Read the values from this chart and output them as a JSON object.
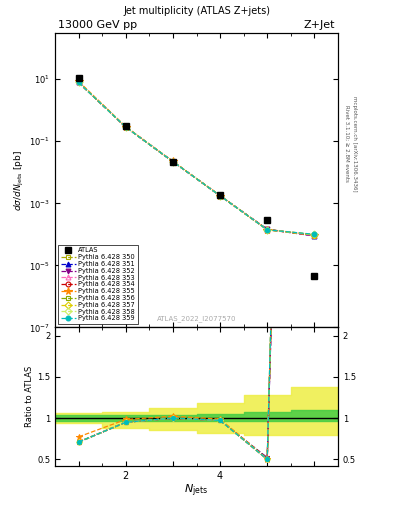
{
  "title_top_left": "13000 GeV pp",
  "title_top_right": "Z+Jet",
  "plot_title": "Jet multiplicity (ATLAS Z+jets)",
  "xlabel": "N_{jets}",
  "ylabel_main": "dσ/dN_{jets} [pb]",
  "ylabel_ratio": "Ratio to ATLAS",
  "watermark": "ATLAS_2022_I2077570",
  "right_label_top": "Rivet 3.1.10; ≥ 2.8M events",
  "right_label_bottom": "mcplots.cern.ch [arXiv:1306.3436]",
  "atlas_data": {
    "x": [
      1,
      2,
      3,
      4,
      5,
      6
    ],
    "y": [
      11.0,
      0.3,
      0.022,
      0.0018,
      0.00028,
      4.5e-06
    ],
    "marker": "s",
    "color": "black",
    "label": "ATLAS"
  },
  "pythia_series": [
    {
      "label": "Pythia 6.428 350",
      "color": "#aaaa00",
      "linestyle": "--",
      "marker": "s",
      "markerfacecolor": "none",
      "x": [
        1,
        2,
        3,
        4,
        5,
        6
      ],
      "y": [
        7.8,
        0.285,
        0.022,
        0.00175,
        0.000145,
        9.5e-05
      ]
    },
    {
      "label": "Pythia 6.428 351",
      "color": "#0000cc",
      "linestyle": "--",
      "marker": "^",
      "markerfacecolor": "#0000cc",
      "x": [
        1,
        2,
        3,
        4,
        5,
        6
      ],
      "y": [
        7.8,
        0.285,
        0.022,
        0.00175,
        0.000145,
        9e-05
      ]
    },
    {
      "label": "Pythia 6.428 352",
      "color": "#880088",
      "linestyle": "--",
      "marker": "v",
      "markerfacecolor": "#880088",
      "x": [
        1,
        2,
        3,
        4,
        5,
        6
      ],
      "y": [
        7.8,
        0.285,
        0.022,
        0.00175,
        0.000145,
        8.8e-05
      ]
    },
    {
      "label": "Pythia 6.428 353",
      "color": "#ff66bb",
      "linestyle": "--",
      "marker": "^",
      "markerfacecolor": "none",
      "x": [
        1,
        2,
        3,
        4,
        5,
        6
      ],
      "y": [
        7.8,
        0.285,
        0.022,
        0.00175,
        0.00014,
        9.2e-05
      ]
    },
    {
      "label": "Pythia 6.428 354",
      "color": "#cc0000",
      "linestyle": "--",
      "marker": "o",
      "markerfacecolor": "none",
      "x": [
        1,
        2,
        3,
        4,
        5,
        6
      ],
      "y": [
        7.8,
        0.285,
        0.022,
        0.00175,
        0.00014,
        9.5e-05
      ]
    },
    {
      "label": "Pythia 6.428 355",
      "color": "#ff8800",
      "linestyle": "--",
      "marker": "*",
      "markerfacecolor": "#ff8800",
      "x": [
        1,
        2,
        3,
        4,
        5,
        6
      ],
      "y": [
        8.5,
        0.295,
        0.0225,
        0.00178,
        0.000142,
        9.8e-05
      ]
    },
    {
      "label": "Pythia 6.428 356",
      "color": "#88aa00",
      "linestyle": "--",
      "marker": "s",
      "markerfacecolor": "none",
      "x": [
        1,
        2,
        3,
        4,
        5,
        6
      ],
      "y": [
        7.8,
        0.285,
        0.022,
        0.00175,
        0.00014,
        9.5e-05
      ]
    },
    {
      "label": "Pythia 6.428 357",
      "color": "#ddcc00",
      "linestyle": "--",
      "marker": "D",
      "markerfacecolor": "none",
      "x": [
        1,
        2,
        3,
        4,
        5,
        6
      ],
      "y": [
        7.8,
        0.285,
        0.022,
        0.00175,
        0.00014,
        9.5e-05
      ]
    },
    {
      "label": "Pythia 6.428 358",
      "color": "#ccee66",
      "linestyle": "--",
      "marker": "D",
      "markerfacecolor": "none",
      "x": [
        1,
        2,
        3,
        4,
        5,
        6
      ],
      "y": [
        7.8,
        0.285,
        0.022,
        0.00175,
        0.00014,
        0.0001
      ]
    },
    {
      "label": "Pythia 6.428 359",
      "color": "#00bbbb",
      "linestyle": "--",
      "marker": "o",
      "markerfacecolor": "#00bbbb",
      "x": [
        1,
        2,
        3,
        4,
        5,
        6
      ],
      "y": [
        7.8,
        0.285,
        0.022,
        0.00175,
        0.00014,
        0.0001
      ]
    }
  ],
  "ratio_band_green_x": [
    0.5,
    1.5,
    2.5,
    3.5,
    4.5,
    5.5,
    6.5
  ],
  "ratio_band_green_low": [
    0.965,
    0.965,
    0.965,
    0.965,
    0.965,
    0.965,
    0.965
  ],
  "ratio_band_green_high": [
    1.035,
    1.035,
    1.035,
    1.035,
    1.055,
    1.08,
    1.1
  ],
  "ratio_band_yellow_x": [
    0.5,
    1.5,
    2.5,
    3.5,
    4.5,
    5.5,
    6.5
  ],
  "ratio_band_yellow_low": [
    0.94,
    0.94,
    0.88,
    0.85,
    0.82,
    0.8,
    0.8
  ],
  "ratio_band_yellow_high": [
    1.06,
    1.06,
    1.08,
    1.12,
    1.18,
    1.28,
    1.38
  ],
  "ylim_main": [
    1e-07,
    300.0
  ],
  "ylim_ratio": [
    0.42,
    2.1
  ],
  "xlim": [
    0.5,
    6.5
  ],
  "xticks": [
    1,
    2,
    3,
    4,
    5,
    6
  ]
}
